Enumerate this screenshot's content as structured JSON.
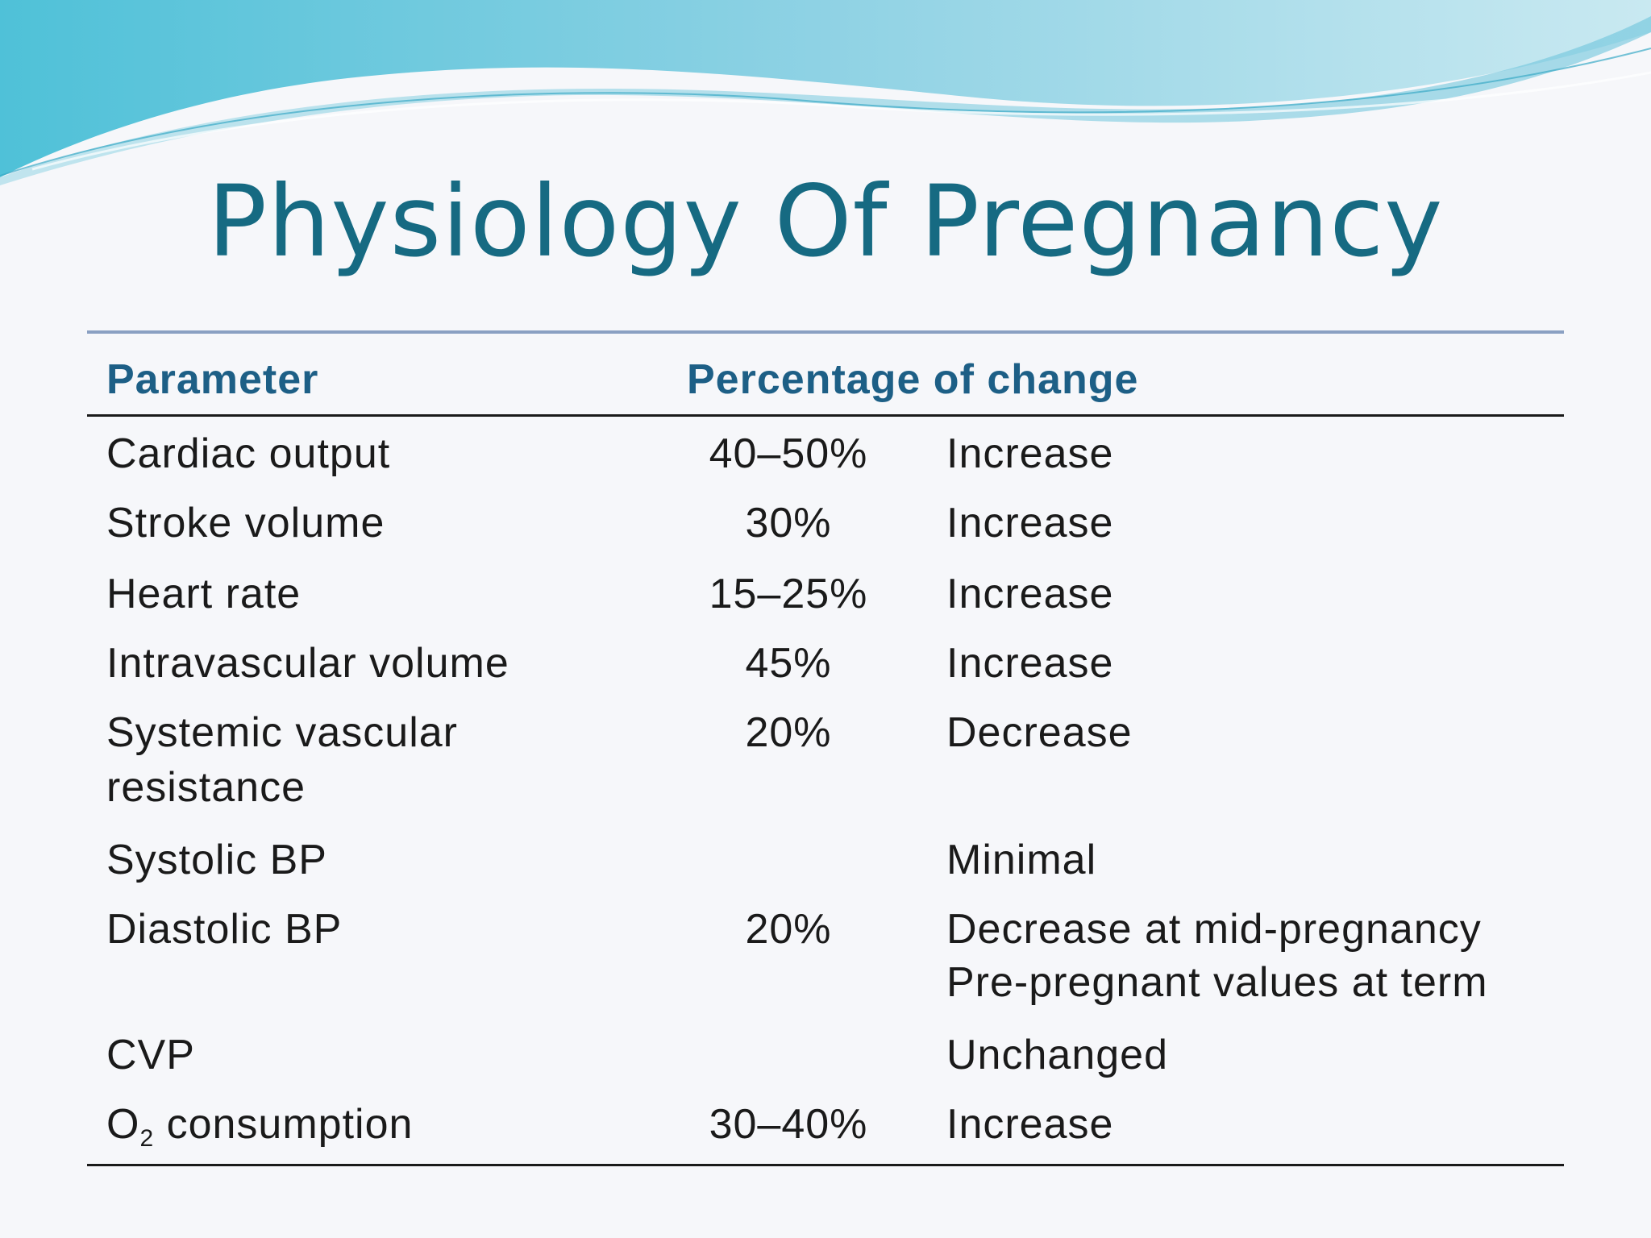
{
  "slide": {
    "title": "Physiology Of Pregnancy"
  },
  "table": {
    "headers": {
      "parameter": "Parameter",
      "percentage": "Percentage of change"
    },
    "rows": [
      {
        "parameter": "Cardiac output",
        "percentage": "40–50%",
        "change": "Increase"
      },
      {
        "parameter": "Stroke volume",
        "percentage": "30%",
        "change": "Increase"
      },
      {
        "parameter": "Heart rate",
        "percentage": "15–25%",
        "change": "Increase"
      },
      {
        "parameter": "Intravascular volume",
        "percentage": "45%",
        "change": "Increase"
      },
      {
        "parameter_line1": "Systemic vascular",
        "parameter_line2": "resistance",
        "percentage": "20%",
        "change": "Decrease"
      },
      {
        "parameter": "Systolic BP",
        "percentage": "",
        "change": "Minimal"
      },
      {
        "parameter": "Diastolic BP",
        "percentage": "20%",
        "change_line1": "Decrease at mid-pregnancy",
        "change_line2": "Pre-pregnant values at term"
      },
      {
        "parameter": "CVP",
        "percentage": "",
        "change": "Unchanged"
      },
      {
        "parameter_main": "O",
        "parameter_sub": "2",
        "parameter_rest": " consumption",
        "percentage": "30–40%",
        "change": "Increase"
      }
    ]
  },
  "theme": {
    "title_color": "#166a82",
    "header_color": "#1d5f86",
    "wave_colors": [
      "#5fc3dc",
      "#9ad7e6",
      "#c4e6ef"
    ]
  }
}
